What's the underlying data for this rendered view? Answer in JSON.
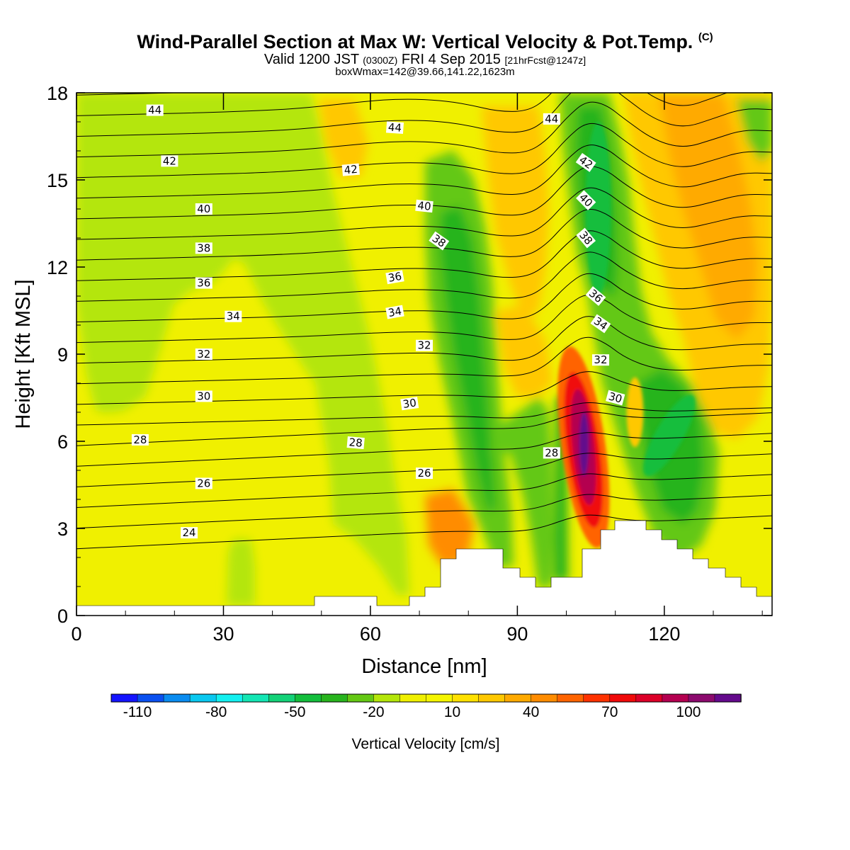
{
  "header": {
    "title": "Wind-Parallel Section at Max W: Vertical Velocity & Pot.Temp.",
    "copyright": "(C)",
    "valid_prefix": "Valid 1200 JST",
    "utc": "(0300Z)",
    "valid_date": "FRI 4 Sep 2015",
    "forecast": "[21hrFcst@1247z]",
    "box_info": "boxWmax=142@39.66,141.22,1623m"
  },
  "colors": {
    "axis": "#000000",
    "terrain": "#ffffff",
    "contour": "#000000",
    "background": "#ffffff"
  },
  "chart_data": {
    "type": "heatmap",
    "xlabel": "Distance [nm]",
    "ylabel": "Height [Kft MSL]",
    "xlim": [
      0,
      142
    ],
    "ylim": [
      0,
      18
    ],
    "x_ticks": [
      0,
      30,
      60,
      90,
      120
    ],
    "y_ticks": [
      0,
      3,
      6,
      9,
      12,
      15,
      18
    ],
    "colorbar": {
      "label": "Vertical Velocity [cm/s]",
      "boundaries": [
        -120,
        -110,
        -100,
        -90,
        -80,
        -70,
        -60,
        -50,
        -40,
        -30,
        -20,
        -10,
        0,
        10,
        20,
        30,
        40,
        50,
        60,
        70,
        80,
        90,
        100,
        110,
        120
      ],
      "tick_labels": [
        "-110",
        "-80",
        "-50",
        "-20",
        "10",
        "40",
        "70",
        "100"
      ],
      "tick_values": [
        -110,
        -80,
        -50,
        -20,
        10,
        40,
        70,
        100
      ],
      "colors": [
        "#1414ff",
        "#0a50f0",
        "#0a8cf0",
        "#0ac8f0",
        "#14f0f0",
        "#14e6b4",
        "#14d278",
        "#14be3c",
        "#28b41e",
        "#64c814",
        "#b4e60a",
        "#f0f000",
        "#f5f500",
        "#ffe100",
        "#ffc800",
        "#ffaa00",
        "#ff8c00",
        "#ff6400",
        "#ff3200",
        "#f00a0a",
        "#dc0028",
        "#b40050",
        "#8c0a6e",
        "#640a8c"
      ]
    },
    "contours": {
      "variable": "Potential temperature",
      "levels": [
        23,
        24,
        25,
        26,
        27,
        28,
        29,
        30,
        31,
        32,
        33,
        34,
        35,
        36,
        37,
        38,
        39,
        40,
        41,
        42,
        43,
        44,
        45,
        46
      ],
      "labels": [
        {
          "text": "44",
          "x": 16,
          "y": 17.4,
          "angle": 0
        },
        {
          "text": "44",
          "x": 65,
          "y": 16.8,
          "angle": 4
        },
        {
          "text": "44",
          "x": 97,
          "y": 17.1,
          "angle": 0
        },
        {
          "text": "42",
          "x": 19,
          "y": 15.65,
          "angle": 0
        },
        {
          "text": "42",
          "x": 56,
          "y": 15.35,
          "angle": -5
        },
        {
          "text": "42",
          "x": 104,
          "y": 15.6,
          "angle": 35
        },
        {
          "text": "40",
          "x": 26,
          "y": 14.0,
          "angle": 0
        },
        {
          "text": "40",
          "x": 71,
          "y": 14.1,
          "angle": 6
        },
        {
          "text": "40",
          "x": 104,
          "y": 14.3,
          "angle": 45
        },
        {
          "text": "38",
          "x": 26,
          "y": 12.65,
          "angle": 0
        },
        {
          "text": "38",
          "x": 74,
          "y": 12.9,
          "angle": 35
        },
        {
          "text": "38",
          "x": 104,
          "y": 13.0,
          "angle": 50
        },
        {
          "text": "36",
          "x": 26,
          "y": 11.45,
          "angle": 0
        },
        {
          "text": "36",
          "x": 65,
          "y": 11.65,
          "angle": -10
        },
        {
          "text": "36",
          "x": 106,
          "y": 11.0,
          "angle": 40
        },
        {
          "text": "34",
          "x": 32,
          "y": 10.3,
          "angle": 0
        },
        {
          "text": "34",
          "x": 65,
          "y": 10.45,
          "angle": -10
        },
        {
          "text": "34",
          "x": 107,
          "y": 10.05,
          "angle": 35
        },
        {
          "text": "32",
          "x": 26,
          "y": 9.0,
          "angle": 0
        },
        {
          "text": "32",
          "x": 71,
          "y": 9.3,
          "angle": 0
        },
        {
          "text": "32",
          "x": 107,
          "y": 8.8,
          "angle": 0
        },
        {
          "text": "30",
          "x": 26,
          "y": 7.55,
          "angle": 0
        },
        {
          "text": "30",
          "x": 68,
          "y": 7.3,
          "angle": -8
        },
        {
          "text": "30",
          "x": 110,
          "y": 7.5,
          "angle": 15
        },
        {
          "text": "28",
          "x": 13,
          "y": 6.05,
          "angle": 0
        },
        {
          "text": "28",
          "x": 57,
          "y": 5.95,
          "angle": 5
        },
        {
          "text": "28",
          "x": 97,
          "y": 5.6,
          "angle": 0
        },
        {
          "text": "26",
          "x": 26,
          "y": 4.55,
          "angle": 0
        },
        {
          "text": "26",
          "x": 71,
          "y": 4.9,
          "angle": 0
        },
        {
          "text": "24",
          "x": 23,
          "y": 2.85,
          "angle": 0
        }
      ]
    },
    "velocity_features": [
      {
        "kind": "ellipse",
        "cx": 103.5,
        "cy": 5.8,
        "rx": 4.5,
        "ry": 3.5,
        "angle": -8,
        "value": 50
      },
      {
        "kind": "ellipse",
        "cx": 103.5,
        "cy": 5.7,
        "rx": 3.3,
        "ry": 2.7,
        "angle": -8,
        "value": 70
      },
      {
        "kind": "ellipse",
        "cx": 103.5,
        "cy": 5.8,
        "rx": 2.2,
        "ry": 2.0,
        "angle": -6,
        "value": 90
      },
      {
        "kind": "ellipse",
        "cx": 103.6,
        "cy": 5.9,
        "rx": 1.0,
        "ry": 1.1,
        "angle": 0,
        "value": 110
      },
      {
        "kind": "ellipse",
        "cx": 106.5,
        "cy": 14.0,
        "rx": 2.6,
        "ry": 3.0,
        "angle": 0,
        "value": -45
      },
      {
        "kind": "ellipse",
        "cx": 121.0,
        "cy": 6.2,
        "rx": 2.8,
        "ry": 1.6,
        "angle": 30,
        "value": -45
      },
      {
        "kind": "ellipse",
        "cx": 114.0,
        "cy": 7.0,
        "rx": 1.7,
        "ry": 1.2,
        "angle": 0,
        "value": 25
      }
    ]
  }
}
